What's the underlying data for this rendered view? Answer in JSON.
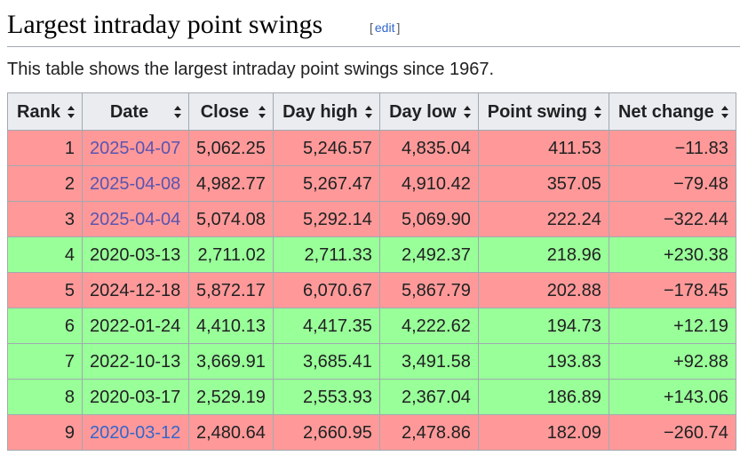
{
  "section": {
    "title": "Largest intraday point swings",
    "edit_open": "[",
    "edit_label": "edit",
    "edit_close": "]"
  },
  "intro": "This table shows the largest intraday point swings since 1967.",
  "table": {
    "headers": [
      "Rank",
      "Date",
      "Close",
      "Day high",
      "Day low",
      "Point swing",
      "Net change"
    ],
    "rows": [
      {
        "rank": "1",
        "date": "2025-04-07",
        "close": "5,062.25",
        "high": "5,246.57",
        "low": "4,835.04",
        "swing": "411.53",
        "net": "−11.83",
        "direction": "down",
        "date_linked": true
      },
      {
        "rank": "2",
        "date": "2025-04-08",
        "close": "4,982.77",
        "high": "5,267.47",
        "low": "4,910.42",
        "swing": "357.05",
        "net": "−79.48",
        "direction": "down",
        "date_linked": true
      },
      {
        "rank": "3",
        "date": "2025-04-04",
        "close": "5,074.08",
        "high": "5,292.14",
        "low": "5,069.90",
        "swing": "222.24",
        "net": "−322.44",
        "direction": "down",
        "date_linked": true
      },
      {
        "rank": "4",
        "date": "2020-03-13",
        "close": "2,711.02",
        "high": "2,711.33",
        "low": "2,492.37",
        "swing": "218.96",
        "net": "+230.38",
        "direction": "up",
        "date_linked": false
      },
      {
        "rank": "5",
        "date": "2024-12-18",
        "close": "5,872.17",
        "high": "6,070.67",
        "low": "5,867.79",
        "swing": "202.88",
        "net": "−178.45",
        "direction": "down",
        "date_linked": false
      },
      {
        "rank": "6",
        "date": "2022-01-24",
        "close": "4,410.13",
        "high": "4,417.35",
        "low": "4,222.62",
        "swing": "194.73",
        "net": "+12.19",
        "direction": "up",
        "date_linked": false
      },
      {
        "rank": "7",
        "date": "2022-10-13",
        "close": "3,669.91",
        "high": "3,685.41",
        "low": "3,491.58",
        "swing": "193.83",
        "net": "+92.88",
        "direction": "up",
        "date_linked": false
      },
      {
        "rank": "8",
        "date": "2020-03-17",
        "close": "2,529.19",
        "high": "2,553.93",
        "low": "2,367.04",
        "swing": "186.89",
        "net": "+143.06",
        "direction": "up",
        "date_linked": false
      },
      {
        "rank": "9",
        "date": "2020-03-12",
        "close": "2,480.64",
        "high": "2,660.95",
        "low": "2,478.86",
        "swing": "182.09",
        "net": "−260.74",
        "direction": "down",
        "date_linked": true
      }
    ]
  },
  "colors": {
    "down_row": "#ff9999",
    "up_row": "#99ff99",
    "header_bg": "#eaecf0",
    "link": "#3366cc",
    "visited_link": "#5a54b0"
  }
}
